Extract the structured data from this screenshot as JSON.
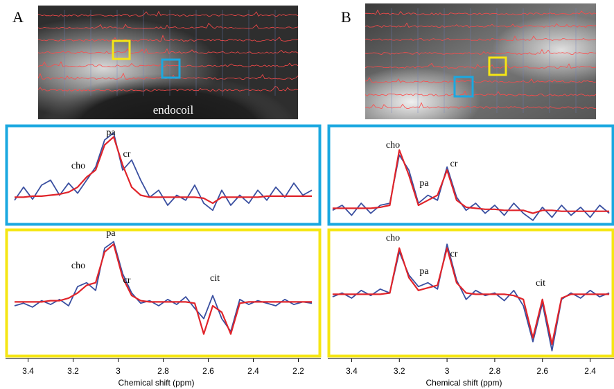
{
  "panel_labels": [
    "A",
    "B"
  ],
  "image_label": "endocoil",
  "chart_data": [
    {
      "type": "line",
      "xlim": [
        3.5,
        2.1
      ],
      "ylim": [
        0,
        100
      ],
      "frame_color": "#1ba8e0",
      "x": [
        3.46,
        3.42,
        3.38,
        3.34,
        3.3,
        3.26,
        3.22,
        3.18,
        3.14,
        3.1,
        3.06,
        3.02,
        2.98,
        2.94,
        2.9,
        2.86,
        2.82,
        2.78,
        2.74,
        2.7,
        2.66,
        2.62,
        2.58,
        2.54,
        2.5,
        2.46,
        2.42,
        2.38,
        2.34,
        2.3,
        2.26,
        2.22,
        2.18,
        2.14
      ],
      "series": [
        {
          "color": "#3a4fa0",
          "values": [
            25,
            38,
            26,
            40,
            45,
            30,
            42,
            32,
            45,
            58,
            85,
            92,
            55,
            65,
            45,
            28,
            35,
            20,
            30,
            25,
            40,
            22,
            15,
            35,
            20,
            30,
            22,
            35,
            25,
            38,
            28,
            42,
            30,
            35
          ]
        },
        {
          "color": "#e0242a",
          "values": [
            28,
            28,
            29,
            29,
            30,
            31,
            33,
            38,
            48,
            55,
            80,
            88,
            60,
            38,
            30,
            28,
            28,
            28,
            28,
            28,
            28,
            27,
            22,
            28,
            28,
            28,
            28,
            28,
            29,
            29,
            29,
            29,
            29,
            29
          ]
        }
      ],
      "annotations": [
        "cho",
        "pa",
        "cr"
      ]
    },
    {
      "type": "line",
      "xlim": [
        3.5,
        2.3
      ],
      "ylim": [
        0,
        100
      ],
      "frame_color": "#1ba8e0",
      "x": [
        3.48,
        3.44,
        3.4,
        3.36,
        3.32,
        3.28,
        3.24,
        3.2,
        3.16,
        3.12,
        3.08,
        3.04,
        3.0,
        2.96,
        2.92,
        2.88,
        2.84,
        2.8,
        2.76,
        2.72,
        2.68,
        2.64,
        2.6,
        2.56,
        2.52,
        2.48,
        2.44,
        2.4,
        2.36,
        2.32
      ],
      "series": [
        {
          "color": "#3a4fa0",
          "values": [
            15,
            20,
            10,
            22,
            12,
            20,
            22,
            70,
            55,
            22,
            30,
            25,
            58,
            28,
            15,
            22,
            12,
            20,
            10,
            22,
            12,
            5,
            18,
            8,
            20,
            10,
            18,
            8,
            20,
            12
          ]
        },
        {
          "color": "#e0242a",
          "values": [
            17,
            17,
            17,
            17,
            17,
            18,
            20,
            75,
            50,
            20,
            25,
            30,
            55,
            25,
            18,
            17,
            16,
            16,
            15,
            15,
            15,
            12,
            15,
            15,
            14,
            14,
            14,
            14,
            14,
            14
          ]
        }
      ],
      "annotations": [
        "cho",
        "pa",
        "cr"
      ]
    },
    {
      "type": "line",
      "xlim": [
        3.5,
        2.1
      ],
      "ylim": [
        0,
        100
      ],
      "frame_color": "#f5e614",
      "x": [
        3.46,
        3.42,
        3.38,
        3.34,
        3.3,
        3.26,
        3.22,
        3.18,
        3.14,
        3.1,
        3.06,
        3.02,
        2.98,
        2.94,
        2.9,
        2.86,
        2.82,
        2.78,
        2.74,
        2.7,
        2.66,
        2.62,
        2.58,
        2.54,
        2.5,
        2.46,
        2.42,
        2.38,
        2.34,
        2.3,
        2.26,
        2.22,
        2.18,
        2.14
      ],
      "series": [
        {
          "color": "#3a4fa0",
          "values": [
            40,
            42,
            39,
            44,
            41,
            45,
            40,
            55,
            58,
            52,
            85,
            90,
            65,
            50,
            42,
            44,
            40,
            45,
            41,
            47,
            38,
            30,
            48,
            30,
            20,
            45,
            41,
            44,
            42,
            40,
            45,
            41,
            43,
            42
          ]
        },
        {
          "color": "#e0242a",
          "values": [
            43,
            43,
            43,
            43,
            44,
            44,
            46,
            50,
            56,
            58,
            82,
            88,
            62,
            48,
            44,
            43,
            43,
            43,
            43,
            43,
            42,
            18,
            40,
            35,
            18,
            42,
            43,
            43,
            43,
            43,
            43,
            43,
            43,
            43
          ]
        }
      ],
      "annotations": [
        "cho",
        "pa",
        "cr",
        "cit"
      ],
      "xticks": [
        3.4,
        3.2,
        3,
        2.8,
        2.6,
        2.4,
        2.2
      ],
      "xlabel": "Chemical shift (ppm)"
    },
    {
      "type": "line",
      "xlim": [
        3.5,
        2.3
      ],
      "ylim": [
        0,
        100
      ],
      "frame_color": "#f5e614",
      "x": [
        3.48,
        3.44,
        3.4,
        3.36,
        3.32,
        3.28,
        3.24,
        3.2,
        3.16,
        3.12,
        3.08,
        3.04,
        3.0,
        2.96,
        2.92,
        2.88,
        2.84,
        2.8,
        2.76,
        2.72,
        2.68,
        2.64,
        2.6,
        2.56,
        2.52,
        2.48,
        2.44,
        2.4,
        2.36,
        2.32
      ],
      "series": [
        {
          "color": "#3a4fa0",
          "values": [
            47,
            50,
            46,
            52,
            48,
            53,
            50,
            82,
            64,
            55,
            58,
            53,
            88,
            60,
            45,
            52,
            48,
            50,
            44,
            52,
            40,
            12,
            42,
            5,
            45,
            50,
            46,
            52,
            47,
            50
          ]
        },
        {
          "color": "#e0242a",
          "values": [
            49,
            49,
            49,
            49,
            49,
            49,
            50,
            85,
            62,
            52,
            54,
            56,
            85,
            58,
            50,
            49,
            49,
            49,
            49,
            48,
            45,
            15,
            45,
            10,
            46,
            49,
            49,
            49,
            49,
            49
          ]
        }
      ],
      "annotations": [
        "cho",
        "pa",
        "cr",
        "cit"
      ],
      "xticks": [
        3.4,
        3.2,
        3,
        2.8,
        2.6,
        2.4
      ],
      "xlabel": "Chemical shift (ppm)"
    }
  ]
}
